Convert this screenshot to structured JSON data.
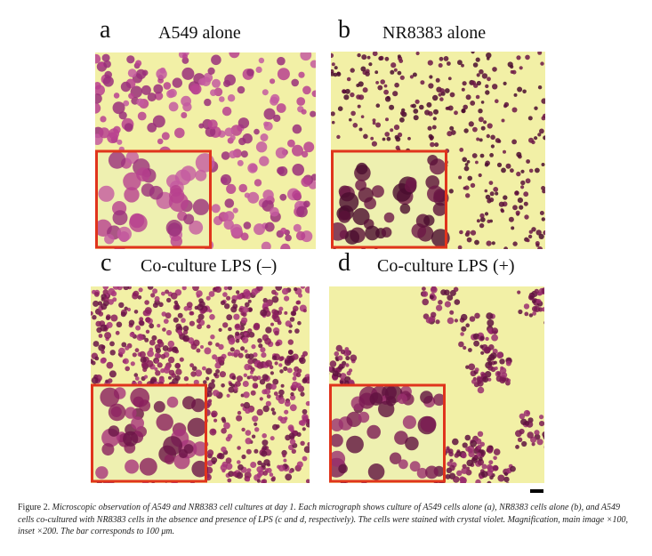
{
  "panels": [
    {
      "letter": "a",
      "title": "A549 alone"
    },
    {
      "letter": "b",
      "title": "NR8383 alone"
    },
    {
      "letter": "c",
      "title": "Co-culture LPS (–)"
    },
    {
      "letter": "d",
      "title": "Co-culture LPS (+)"
    }
  ],
  "caption": {
    "label": "Figure 2.",
    "text": "Microscopic observation of A549 and NR8383 cell cultures at day 1. Each micrograph shows culture of A549 cells alone (a), NR8383 cells alone (b), and A549 cells co-cultured with NR8383 cells in the absence and presence of LPS (c and d, respectively). The cells were stained with crystal violet. Magnification, main image ×100, inset ×200. The bar corresponds to 100 μm."
  }
}
